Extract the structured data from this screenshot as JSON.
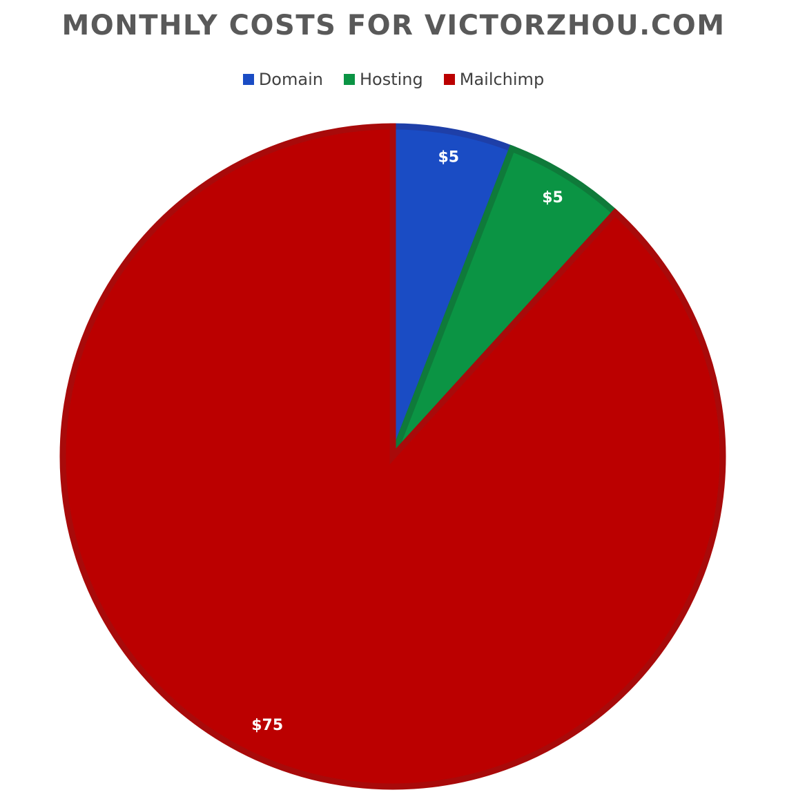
{
  "chart_data": {
    "type": "pie",
    "title": "MONTHLY COSTS FOR VICTORZHOU.COM",
    "categories": [
      "Domain",
      "Hosting",
      "Mailchimp"
    ],
    "values": [
      5,
      5,
      75
    ],
    "data_labels": [
      "$5",
      "$5",
      "$75"
    ],
    "colors": [
      "#1a4cc4",
      "#0b9444",
      "#bb0000"
    ],
    "border_colors": [
      "#1e3fa8",
      "#0f7a3a",
      "#a80a0a"
    ],
    "start_angle_deg": 0,
    "direction": "clockwise",
    "legend": "top"
  }
}
